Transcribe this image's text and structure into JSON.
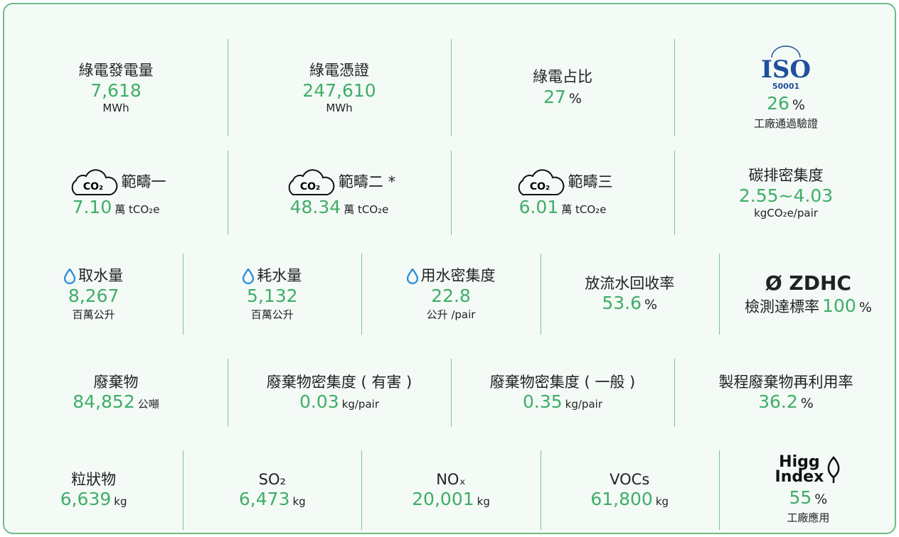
{
  "rows": [
    {
      "cells": [
        {
          "label": "綠電發電量",
          "value": "7,618",
          "unit": "MWh"
        },
        {
          "label": "綠電憑證",
          "value": "247,610",
          "unit": "MWh"
        },
        {
          "label": "綠電占比",
          "value": "27",
          "unit": "%"
        },
        {
          "logo": {
            "text": "ISO",
            "sub": "50001"
          },
          "value": "26",
          "unit": "%",
          "note": "工廠通過驗證"
        }
      ]
    },
    {
      "cells": [
        {
          "icon": "CO₂",
          "label": "範疇一",
          "value": "7.10",
          "unit": "萬 tCO₂e"
        },
        {
          "icon": "CO₂",
          "label": "範疇二 *",
          "value": "48.34",
          "unit": "萬 tCO₂e"
        },
        {
          "icon": "CO₂",
          "label": "範疇三",
          "value": "6.01",
          "unit": "萬 tCO₂e"
        },
        {
          "label": "碳排密集度",
          "value": "2.55~4.03",
          "unit": "kgCO₂e/pair"
        }
      ]
    },
    {
      "cells": [
        {
          "label": "取水量",
          "value": "8,267",
          "unit": "百萬公升"
        },
        {
          "label": "耗水量",
          "value": "5,132",
          "unit": "百萬公升"
        },
        {
          "label": "用水密集度",
          "value": "22.8",
          "unit": "公升 /pair"
        },
        {
          "label": "放流水回收率",
          "value": "53.6",
          "unit": "%"
        },
        {
          "logo": {
            "text": "Ø ZDHC"
          },
          "label": "檢測達標率",
          "value": "100",
          "unit": "%"
        }
      ]
    },
    {
      "cells": [
        {
          "label": "廢棄物",
          "value": "84,852",
          "unit": "公噸"
        },
        {
          "label": "廢棄物密集度 ( 有害 )",
          "value": "0.03",
          "unit": "kg/pair"
        },
        {
          "label": "廢棄物密集度 ( 一般 )",
          "value": "0.35",
          "unit": "kg/pair"
        },
        {
          "label": "製程廢棄物再利用率",
          "value": "36.2",
          "unit": "%"
        }
      ]
    },
    {
      "cells": [
        {
          "label": "粒狀物",
          "value": "6,639",
          "unit": "kg"
        },
        {
          "label": "SO₂",
          "value": "6,473",
          "unit": "kg"
        },
        {
          "label": "NOₓ",
          "value": "20,001",
          "unit": "kg"
        },
        {
          "label": "VOCs",
          "value": "61,800",
          "unit": "kg"
        },
        {
          "logo": {
            "text": "Higg",
            "sub": "Index"
          },
          "value": "55",
          "unit": "%",
          "note": "工廠應用"
        }
      ]
    }
  ]
}
